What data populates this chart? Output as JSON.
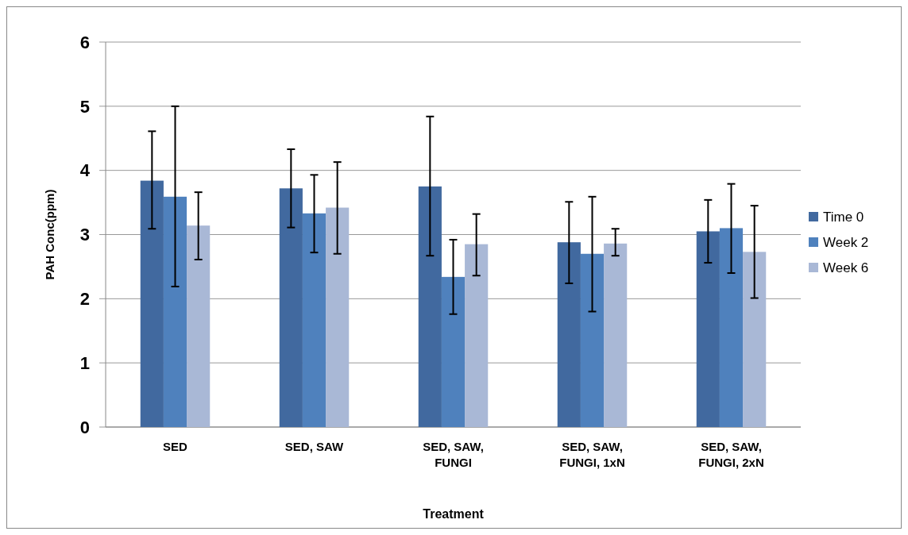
{
  "chart_data": {
    "type": "bar",
    "xlabel": "Treatment",
    "ylabel": "PAH Conc(ppm)",
    "categories": [
      "SED",
      "SED, SAW",
      "SED, SAW, FUNGI",
      "SED, SAW, FUNGI, 1xN",
      "SED, SAW, FUNGI, 2xN"
    ],
    "series": [
      {
        "name": "Time 0",
        "color": "#41699f",
        "values": [
          3.84,
          3.72,
          3.75,
          2.88,
          3.05
        ],
        "errors": [
          [
            3.09,
            4.61
          ],
          [
            3.11,
            4.33
          ],
          [
            2.67,
            4.84
          ],
          [
            2.24,
            3.51
          ],
          [
            2.56,
            3.54
          ]
        ]
      },
      {
        "name": "Week 2",
        "color": "#4f81bd",
        "values": [
          3.59,
          3.33,
          2.34,
          2.7,
          3.1
        ],
        "errors": [
          [
            2.19,
            5.0
          ],
          [
            2.72,
            3.93
          ],
          [
            1.76,
            2.92
          ],
          [
            1.8,
            3.59
          ],
          [
            2.4,
            3.79
          ]
        ]
      },
      {
        "name": "Week 6",
        "color": "#a9b8d6",
        "values": [
          3.14,
          3.42,
          2.85,
          2.86,
          2.73
        ],
        "errors": [
          [
            2.61,
            3.66
          ],
          [
            2.7,
            4.13
          ],
          [
            2.36,
            3.32
          ],
          [
            2.67,
            3.09
          ],
          [
            2.01,
            3.45
          ]
        ]
      }
    ],
    "ylim": [
      0,
      6
    ],
    "yticks": [
      0,
      1,
      2,
      3,
      4,
      5,
      6
    ],
    "grid": "y",
    "legend": "right"
  }
}
